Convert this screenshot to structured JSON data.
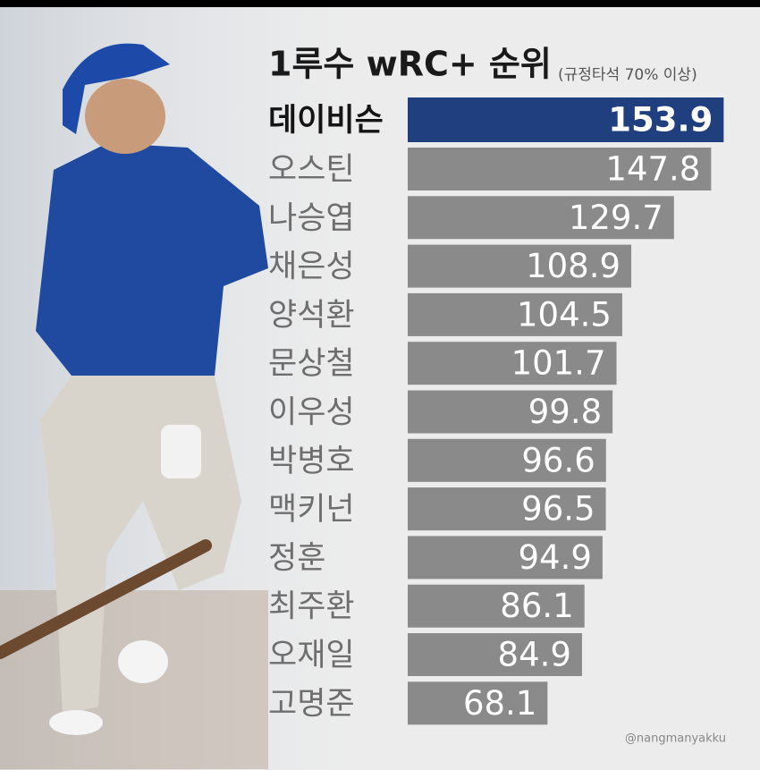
{
  "chart_data": {
    "type": "barh",
    "title": "1루수 wRC+ 순위",
    "subtitle": "(규정타석 70% 이상)",
    "credit": "@nangmanyakku",
    "categories": [
      "데이비슨",
      "오스틴",
      "나승엽",
      "채은성",
      "양석환",
      "문상철",
      "이우성",
      "박병호",
      "맥키넌",
      "정훈",
      "최주환",
      "오재일",
      "고명준"
    ],
    "values": [
      153.9,
      147.8,
      129.7,
      108.9,
      104.5,
      101.7,
      99.8,
      96.6,
      96.5,
      94.9,
      86.1,
      84.9,
      68.1
    ],
    "color": "#8a8a8a",
    "colors": [
      "#1f3f7e",
      "#8a8a8a",
      "#8a8a8a",
      "#8a8a8a",
      "#8a8a8a",
      "#8a8a8a",
      "#8a8a8a",
      "#8a8a8a",
      "#8a8a8a",
      "#8a8a8a",
      "#8a8a8a",
      "#8a8a8a",
      "#8a8a8a"
    ]
  }
}
